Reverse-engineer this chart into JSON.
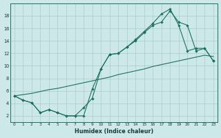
{
  "xlabel": "Humidex (Indice chaleur)",
  "bg_color": "#cce8e8",
  "grid_color": "#aacaca",
  "line_color": "#1a7060",
  "xlim": [
    -0.5,
    23.5
  ],
  "ylim": [
    1.0,
    20.0
  ],
  "xticks": [
    0,
    1,
    2,
    3,
    4,
    5,
    6,
    7,
    8,
    9,
    10,
    11,
    12,
    13,
    14,
    15,
    16,
    17,
    18,
    19,
    20,
    21,
    22,
    23
  ],
  "yticks": [
    2,
    4,
    6,
    8,
    10,
    12,
    14,
    16,
    18
  ],
  "line_linear_x": [
    0,
    1,
    2,
    3,
    4,
    5,
    6,
    7,
    8,
    9,
    10,
    11,
    12,
    13,
    14,
    15,
    16,
    17,
    18,
    19,
    20,
    21,
    22,
    23
  ],
  "line_linear_y": [
    5.2,
    5.4,
    5.6,
    5.9,
    6.2,
    6.4,
    6.7,
    7.0,
    7.3,
    7.6,
    7.9,
    8.2,
    8.6,
    8.9,
    9.2,
    9.5,
    9.9,
    10.2,
    10.5,
    10.8,
    11.1,
    11.4,
    11.7,
    11.5
  ],
  "line_upper_x": [
    0,
    1,
    2,
    3,
    4,
    5,
    6,
    7,
    8,
    9,
    10,
    11,
    12,
    13,
    14,
    15,
    16,
    17,
    18,
    19,
    20,
    21,
    22,
    23
  ],
  "line_upper_y": [
    5.2,
    4.5,
    4.1,
    2.5,
    3.0,
    2.5,
    2.0,
    2.0,
    2.0,
    6.3,
    9.5,
    11.8,
    12.0,
    13.0,
    14.2,
    15.5,
    16.8,
    18.3,
    19.1,
    16.5,
    12.4,
    12.8,
    12.8,
    10.8
  ],
  "line_mid_x": [
    0,
    1,
    2,
    3,
    4,
    5,
    6,
    7,
    8,
    9,
    10,
    11,
    12,
    13,
    14,
    15,
    16,
    17,
    18,
    19,
    20,
    21,
    22,
    23
  ],
  "line_mid_y": [
    5.2,
    4.5,
    4.1,
    2.5,
    3.0,
    2.5,
    2.0,
    2.0,
    3.3,
    4.8,
    9.5,
    11.8,
    12.0,
    13.0,
    14.0,
    15.3,
    16.5,
    17.0,
    18.8,
    17.0,
    16.5,
    12.4,
    12.8,
    10.8
  ]
}
